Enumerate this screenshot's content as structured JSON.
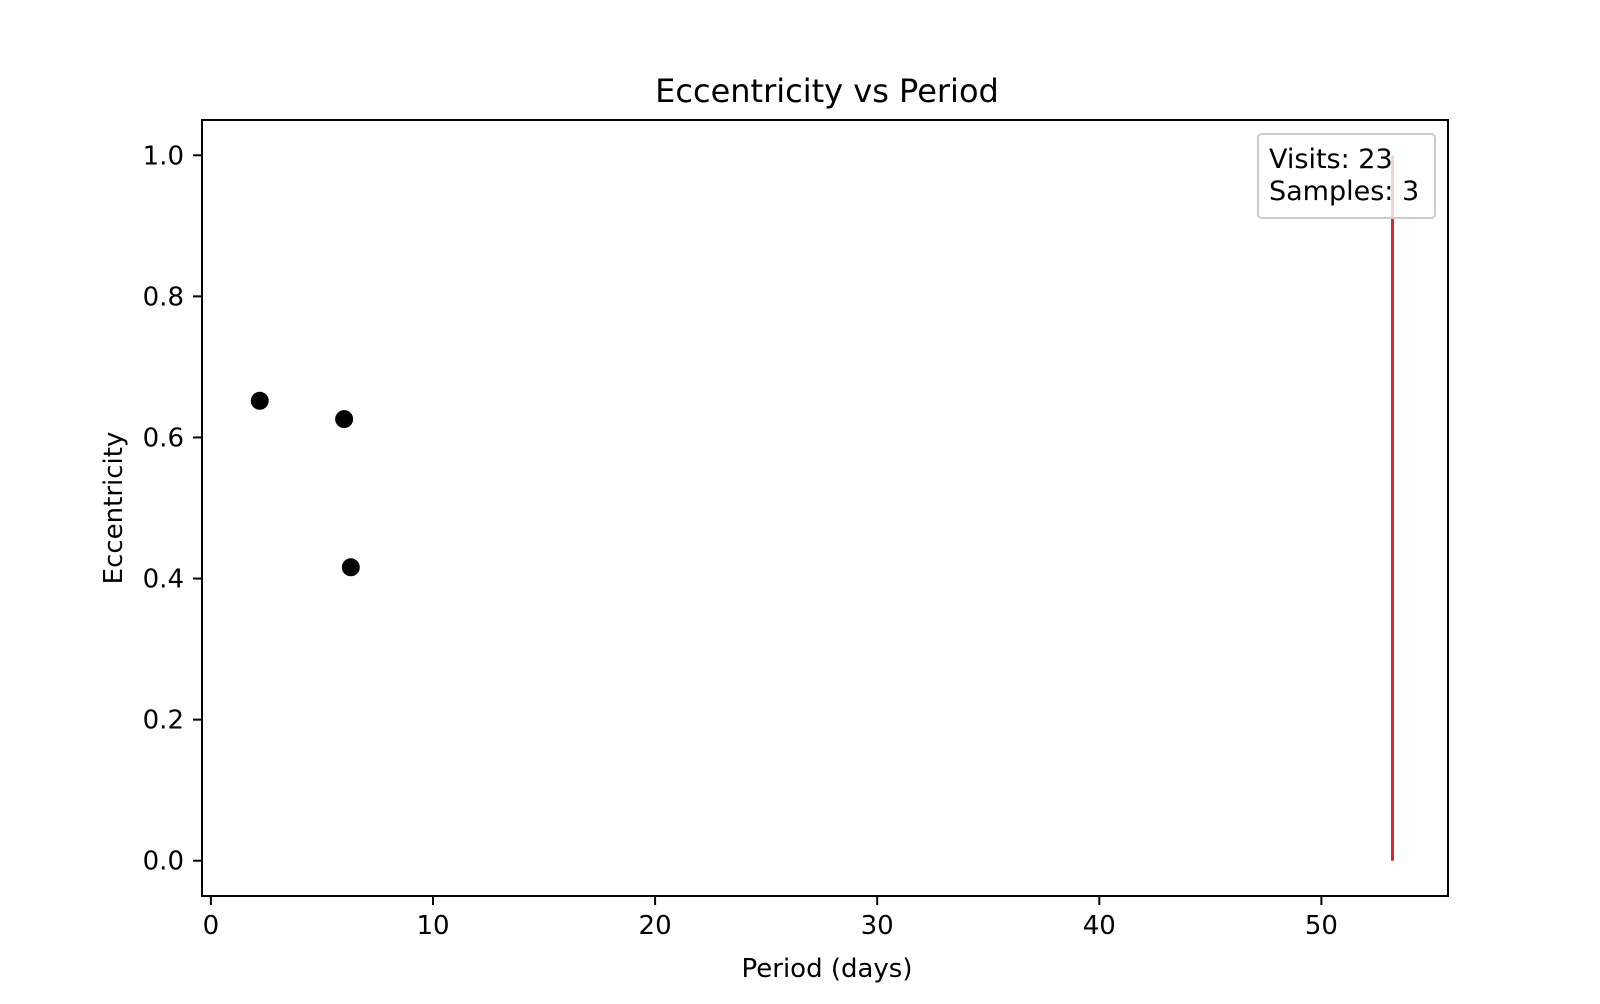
{
  "chart_data": {
    "type": "scatter",
    "title": "Eccentricity vs Period",
    "xlabel": "Period (days)",
    "ylabel": "Eccentricity",
    "xlim": [
      -0.4,
      55.7
    ],
    "ylim": [
      -0.05,
      1.05
    ],
    "xticks": [
      0,
      10,
      20,
      30,
      40,
      50
    ],
    "xtick_labels": [
      "0",
      "10",
      "20",
      "30",
      "40",
      "50"
    ],
    "yticks": [
      0.0,
      0.2,
      0.4,
      0.6,
      0.8,
      1.0
    ],
    "ytick_labels": [
      "0.0",
      "0.2",
      "0.4",
      "0.6",
      "0.8",
      "1.0"
    ],
    "grid": false,
    "series": [
      {
        "type": "scatter",
        "color": "#000000",
        "points": [
          {
            "x": 2.2,
            "y": 0.652
          },
          {
            "x": 6.0,
            "y": 0.626
          },
          {
            "x": 6.3,
            "y": 0.416
          }
        ]
      }
    ],
    "vertical_line": {
      "x": 53.2,
      "y_from": 0.0,
      "y_to": 1.0,
      "color": "#d62728"
    },
    "annotation": {
      "lines": [
        "Visits: 23",
        "Samples: 3"
      ],
      "placement": "top-right"
    }
  }
}
